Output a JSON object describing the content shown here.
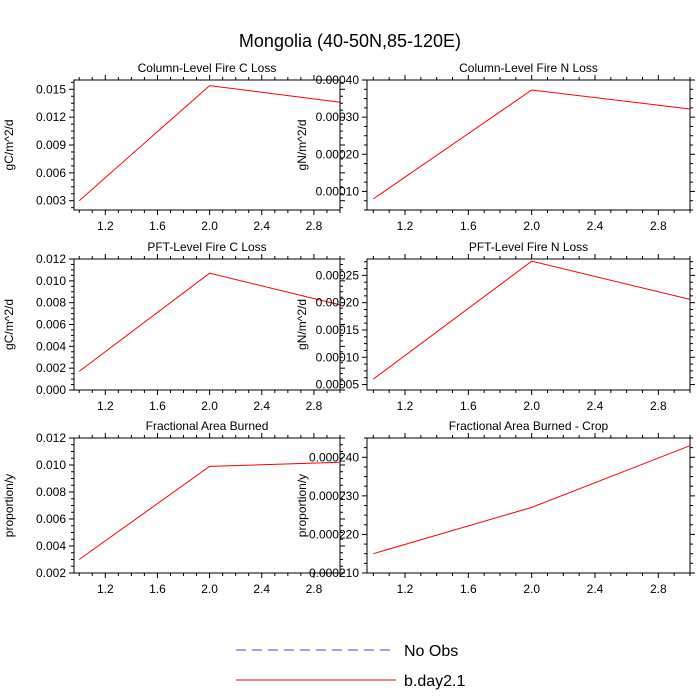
{
  "figure": {
    "title": "Mongolia (40-50N,85-120E)"
  },
  "legend": {
    "entries": [
      {
        "label": "No Obs",
        "color": "#4a4ad8",
        "dash": true
      },
      {
        "label": "b.day2.1",
        "color": "#ff0000",
        "dash": false
      }
    ]
  },
  "chart_data": [
    {
      "type": "line",
      "title": "Column-Level Fire C Loss",
      "ylabel": "gC/m^2/d",
      "xlabel": "",
      "xlim": [
        0.96,
        3.0
      ],
      "ylim": [
        0.002,
        0.016
      ],
      "xticks": [
        1.2,
        1.6,
        2.0,
        2.4,
        2.8
      ],
      "xtick_labels": [
        "1.2",
        "1.6",
        "2.0",
        "2.4",
        "2.8"
      ],
      "yticks": [
        0.003,
        0.006,
        0.009,
        0.012,
        0.015
      ],
      "ytick_labels": [
        "0.003",
        "0.006",
        "0.009",
        "0.012",
        "0.015"
      ],
      "series": [
        {
          "name": "b.day2.1",
          "color": "#ff0000",
          "x": [
            1,
            2,
            3
          ],
          "y": [
            0.003,
            0.0154,
            0.0136
          ]
        }
      ]
    },
    {
      "type": "line",
      "title": "Column-Level Fire N Loss",
      "ylabel": "gN/m^2/d",
      "xlabel": "",
      "xlim": [
        0.96,
        3.0
      ],
      "ylim": [
        5e-05,
        0.0004
      ],
      "xticks": [
        1.2,
        1.6,
        2.0,
        2.4,
        2.8
      ],
      "xtick_labels": [
        "1.2",
        "1.6",
        "2.0",
        "2.4",
        "2.8"
      ],
      "yticks": [
        0.0001,
        0.0002,
        0.0003,
        0.0004
      ],
      "ytick_labels": [
        "0.00010",
        "0.00020",
        "0.00030",
        "0.00040"
      ],
      "series": [
        {
          "name": "b.day2.1",
          "color": "#ff0000",
          "x": [
            1,
            2,
            3
          ],
          "y": [
            8e-05,
            0.000373,
            0.000322
          ]
        }
      ]
    },
    {
      "type": "line",
      "title": "PFT-Level Fire C Loss",
      "ylabel": "gC/m^2/d",
      "xlabel": "",
      "xlim": [
        0.96,
        3.0
      ],
      "ylim": [
        0.0,
        0.012
      ],
      "xticks": [
        1.2,
        1.6,
        2.0,
        2.4,
        2.8
      ],
      "xtick_labels": [
        "1.2",
        "1.6",
        "2.0",
        "2.4",
        "2.8"
      ],
      "yticks": [
        0.0,
        0.002,
        0.004,
        0.006,
        0.008,
        0.01,
        0.012
      ],
      "ytick_labels": [
        "0.000",
        "0.002",
        "0.004",
        "0.006",
        "0.008",
        "0.010",
        "0.012"
      ],
      "series": [
        {
          "name": "b.day2.1",
          "color": "#ff0000",
          "x": [
            1,
            2,
            3
          ],
          "y": [
            0.0017,
            0.0107,
            0.0078
          ]
        }
      ]
    },
    {
      "type": "line",
      "title": "PFT-Level Fire N Loss",
      "ylabel": "gN/m^2/d",
      "xlabel": "",
      "xlim": [
        0.96,
        3.0
      ],
      "ylim": [
        4e-05,
        0.00028
      ],
      "xticks": [
        1.2,
        1.6,
        2.0,
        2.4,
        2.8
      ],
      "xtick_labels": [
        "1.2",
        "1.6",
        "2.0",
        "2.4",
        "2.8"
      ],
      "yticks": [
        5e-05,
        0.0001,
        0.00015,
        0.0002,
        0.00025
      ],
      "ytick_labels": [
        "0.00005",
        "0.00010",
        "0.00015",
        "0.00020",
        "0.00025"
      ],
      "series": [
        {
          "name": "b.day2.1",
          "color": "#ff0000",
          "x": [
            1,
            2,
            3
          ],
          "y": [
            6e-05,
            0.000276,
            0.000206
          ]
        }
      ]
    },
    {
      "type": "line",
      "title": "Fractional Area Burned",
      "ylabel": "proportion/y",
      "xlabel": "",
      "xlim": [
        0.96,
        3.0
      ],
      "ylim": [
        0.002,
        0.012
      ],
      "xticks": [
        1.2,
        1.6,
        2.0,
        2.4,
        2.8
      ],
      "xtick_labels": [
        "1.2",
        "1.6",
        "2.0",
        "2.4",
        "2.8"
      ],
      "yticks": [
        0.002,
        0.004,
        0.006,
        0.008,
        0.01,
        0.012
      ],
      "ytick_labels": [
        "0.002",
        "0.004",
        "0.006",
        "0.008",
        "0.010",
        "0.012"
      ],
      "series": [
        {
          "name": "b.day2.1",
          "color": "#ff0000",
          "x": [
            1,
            2,
            3
          ],
          "y": [
            0.003,
            0.0099,
            0.0102
          ]
        }
      ]
    },
    {
      "type": "line",
      "title": "Fractional Area Burned - Crop",
      "ylabel": "proportion/y",
      "xlabel": "",
      "xlim": [
        0.96,
        3.0
      ],
      "ylim": [
        0.00021,
        0.000245
      ],
      "xticks": [
        1.2,
        1.6,
        2.0,
        2.4,
        2.8
      ],
      "xtick_labels": [
        "1.2",
        "1.6",
        "2.0",
        "2.4",
        "2.8"
      ],
      "yticks": [
        0.00021,
        0.00022,
        0.00023,
        0.00024
      ],
      "ytick_labels": [
        "0.000210",
        "0.000220",
        "0.000230",
        "0.000240"
      ],
      "series": [
        {
          "name": "b.day2.1",
          "color": "#ff0000",
          "x": [
            1,
            2,
            3
          ],
          "y": [
            0.000215,
            0.000227,
            0.000243
          ]
        }
      ]
    }
  ]
}
